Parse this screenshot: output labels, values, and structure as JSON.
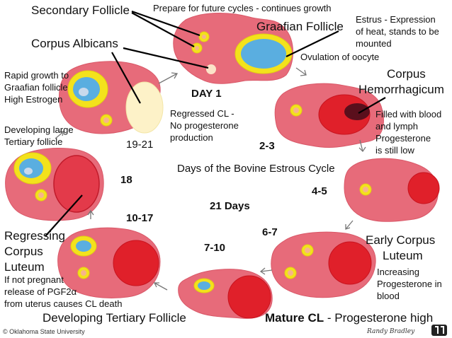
{
  "title": "Days of the Bovine Estrous Cycle",
  "cycle_length": "21 Days",
  "day_labels": {
    "d1": "DAY 1",
    "d2_3": "2-3",
    "d4_5": "4-5",
    "d6_7": "6-7",
    "d7_10": "7-10",
    "d10_17": "10-17",
    "d18": "18",
    "d19_21": "19-21"
  },
  "structures": {
    "secondary_follicle": "Secondary Follicle",
    "graafian_follicle": "Graafian Follicle",
    "corpus_albicans": "Corpus Albicans",
    "corpus_hemorrhagicum_1": "Corpus",
    "corpus_hemorrhagicum_2": "Hemorrhagicum",
    "early_cl_1": "Early Corpus",
    "early_cl_2": "Luteum",
    "regressing_cl_1": "Regressing",
    "regressing_cl_2": "Corpus",
    "regressing_cl_3": "Luteum",
    "developing_tertiary": "Developing Tertiary Follicle",
    "mature_cl": "Mature CL",
    "mature_cl_note": " - Progesterone high"
  },
  "notes": {
    "future_cycles": "Prepare for future cycles - continues growth",
    "estrus_1": "Estrus - Expression",
    "estrus_2": "of heat, stands to be",
    "estrus_3": "mounted",
    "ovulation": "Ovulation of oocyte",
    "regressed_1": "Regressed CL -",
    "regressed_2": "No progesterone",
    "regressed_3": "production",
    "rapid_1": "Rapid growth to",
    "rapid_2": "Graafian follicle",
    "rapid_3": "High Estrogen",
    "dev_large_1": "Developing large",
    "dev_large_2": "Tertiary follicle",
    "filled_1": "Filled with blood",
    "filled_2": "and lymph",
    "filled_3": "Progesterone",
    "filled_4": "is still low",
    "increasing_1": "Increasing",
    "increasing_2": "Progesterone in",
    "increasing_3": "blood",
    "pgf_1": "If not pregnant",
    "pgf_2": "release of PGF2α",
    "pgf_3": "from uterus causes CL death"
  },
  "footer": {
    "left": "© Oklahoma State University",
    "right": "Randy Bradley"
  },
  "colors": {
    "ovary": "#e76b7a",
    "corpus_luteum": "#e0202a",
    "follicle_ring": "#f3e21c",
    "follicle_fill": "#5aaee0",
    "corpus_albicans": "#fdf2c8",
    "hemorrhagicum_clot": "#5a0f1c"
  }
}
